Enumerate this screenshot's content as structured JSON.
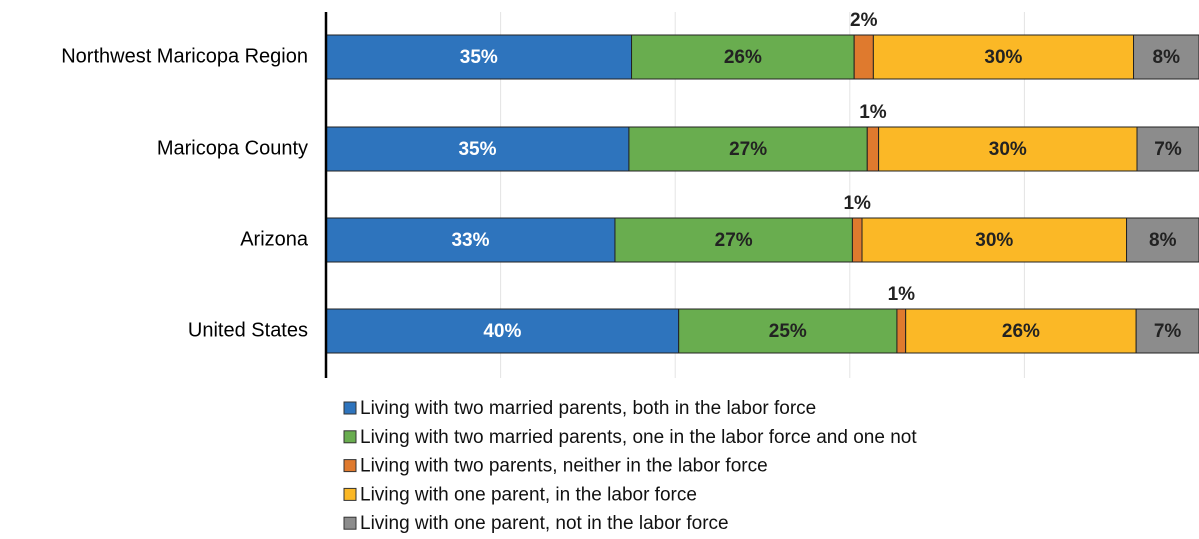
{
  "chart_data": {
    "type": "stacked-barh",
    "categories": [
      "Northwest Maricopa Region",
      "Maricopa County",
      "Arizona",
      "United States"
    ],
    "series": [
      {
        "name": "Living with two married parents, both in the labor force",
        "color": "#2e74bd",
        "values": [
          35.0,
          34.7,
          33.1,
          40.4
        ],
        "value_labels": [
          "35%",
          "35%",
          "33%",
          "40%"
        ]
      },
      {
        "name": "Living with two married parents, one in the labor force and one not",
        "color": "#69ad4f",
        "values": [
          25.5,
          27.3,
          27.2,
          25.0
        ],
        "value_labels": [
          "26%",
          "27%",
          "27%",
          "25%"
        ]
      },
      {
        "name": "Living with two parents, neither in the labor force",
        "color": "#df7a2e",
        "values": [
          2.2,
          1.3,
          1.1,
          1.0
        ],
        "value_labels": [
          "2%",
          "1%",
          "1%",
          "1%"
        ]
      },
      {
        "name": "Living with one parent, in the labor force",
        "color": "#fbb826",
        "values": [
          29.8,
          29.6,
          30.3,
          26.4
        ],
        "value_labels": [
          "30%",
          "30%",
          "30%",
          "26%"
        ]
      },
      {
        "name": "Living with one parent, not in the labor force",
        "color": "#8c8c8c",
        "values": [
          7.5,
          7.1,
          8.3,
          7.2
        ],
        "value_labels": [
          "8%",
          "7%",
          "8%",
          "7%"
        ]
      }
    ],
    "xlim": [
      0,
      100
    ],
    "xticks": [
      20,
      40,
      60,
      80
    ],
    "grid": true
  }
}
